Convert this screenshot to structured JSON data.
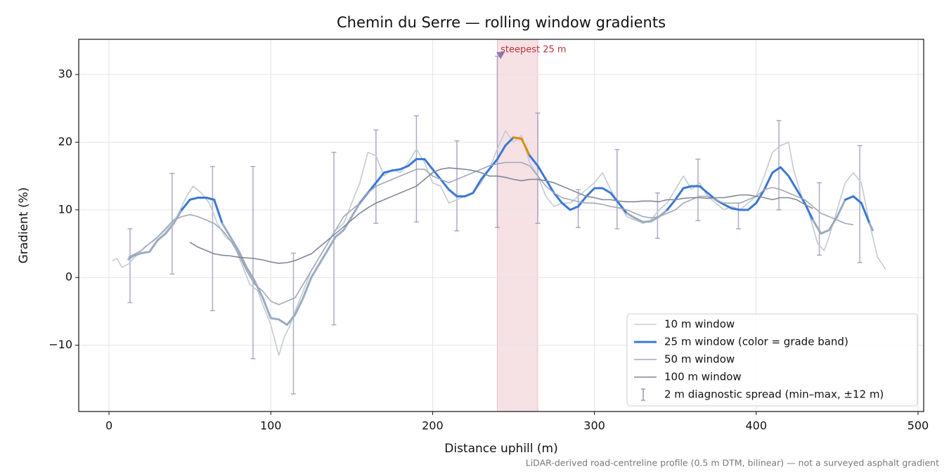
{
  "chart_data": {
    "type": "line",
    "title": "Chemin du Serre — rolling window gradients",
    "xlabel": "Distance uphill (m)",
    "ylabel": "Gradient (%)",
    "note": "LiDAR-derived road-centreline profile (0.5 m DTM, bilinear) — not a surveyed asphalt gradient",
    "xlim": [
      -18.7,
      503.5
    ],
    "ylim": [
      -19.8,
      35.2
    ],
    "xticks": [
      0,
      100,
      200,
      300,
      400,
      500
    ],
    "yticks": [
      {
        "value": -10,
        "label": "−10"
      },
      0,
      10,
      20,
      30
    ],
    "grid": true,
    "legend": "lower right",
    "highlight": {
      "from": 240,
      "to": 265,
      "color": "#e9b5bd"
    },
    "annotation": {
      "text": "steepest 25 m",
      "x": 242,
      "y": 32.8,
      "color": "#c0303a",
      "marker_color": "#8a78b0"
    },
    "grade_bands": [
      {
        "max": 10,
        "color": "#9aabc0"
      },
      {
        "max": 20,
        "color": "#3a78d4"
      },
      {
        "color": "#e08a00"
      }
    ],
    "series": [
      {
        "name": "10 m window",
        "color": "#c3cad4",
        "width": 1.6,
        "x": [
          2,
          5,
          8,
          12,
          18,
          22,
          28,
          35,
          42,
          48,
          52,
          57,
          62,
          67,
          72,
          77,
          82,
          87,
          92,
          95,
          100,
          105,
          108,
          112,
          115,
          120,
          125,
          130,
          135,
          140,
          145,
          150,
          155,
          160,
          165,
          170,
          175,
          180,
          185,
          190,
          195,
          200,
          205,
          210,
          215,
          220,
          225,
          230,
          235,
          240,
          245,
          250,
          255,
          260,
          265,
          270,
          275,
          280,
          285,
          290,
          295,
          300,
          305,
          310,
          315,
          320,
          325,
          330,
          335,
          340,
          345,
          350,
          355,
          360,
          365,
          370,
          375,
          380,
          385,
          390,
          395,
          400,
          405,
          410,
          415,
          420,
          423,
          428,
          432,
          438,
          442,
          445,
          450,
          455,
          460,
          465,
          470,
          475,
          480
        ],
        "values": [
          2.5,
          2.8,
          1.5,
          2,
          3.5,
          4.5,
          5.5,
          7,
          9,
          12,
          13.5,
          12.5,
          11,
          8,
          6,
          5,
          2,
          -1,
          -2,
          -4,
          -7,
          -11.5,
          -9,
          -7,
          -5,
          -2,
          1,
          3,
          5,
          7,
          8,
          11,
          14,
          18.5,
          18,
          15,
          16,
          15.5,
          17,
          19,
          17,
          14,
          13.5,
          11,
          11.5,
          12,
          12.5,
          14,
          16,
          19,
          21.7,
          20,
          21,
          17,
          15,
          12,
          10.5,
          11,
          11,
          12,
          13,
          14,
          15.5,
          13,
          11,
          9,
          8.5,
          8,
          8.5,
          10,
          11,
          13,
          15,
          13,
          14,
          12,
          11,
          10,
          10.5,
          10,
          11,
          12,
          15,
          18.5,
          19.5,
          20,
          16,
          12,
          10,
          5,
          4,
          6,
          10,
          14,
          15.5,
          14,
          8,
          3,
          1.2
        ]
      },
      {
        "name": "25 m window (color = grade band)",
        "color": "#3a78d4",
        "width": 3,
        "banded": true,
        "x": [
          12,
          15,
          20,
          25,
          30,
          35,
          40,
          45,
          50,
          55,
          60,
          65,
          70,
          75,
          80,
          85,
          90,
          95,
          100,
          105,
          110,
          115,
          120,
          125,
          130,
          135,
          140,
          145,
          150,
          155,
          160,
          165,
          170,
          175,
          180,
          185,
          190,
          195,
          200,
          205,
          210,
          215,
          220,
          225,
          230,
          235,
          240,
          245,
          250,
          255,
          260,
          265,
          270,
          275,
          280,
          285,
          290,
          295,
          300,
          305,
          310,
          315,
          320,
          325,
          330,
          335,
          340,
          345,
          350,
          355,
          360,
          365,
          370,
          375,
          380,
          385,
          390,
          395,
          400,
          405,
          410,
          415,
          420,
          425,
          430,
          435,
          440,
          445,
          450,
          455,
          460,
          465,
          470,
          472
        ],
        "values": [
          2.7,
          3.2,
          3.6,
          3.8,
          5.5,
          6.5,
          8,
          10,
          11.5,
          11.8,
          11.8,
          11.5,
          8,
          6,
          4,
          1.5,
          -0.5,
          -3,
          -6,
          -6.2,
          -7,
          -5.5,
          -3,
          0,
          2,
          4,
          6,
          7,
          9,
          11,
          12.5,
          14,
          15.5,
          15.8,
          16,
          16.5,
          17.5,
          17.5,
          16,
          14.5,
          13,
          12,
          12,
          12.5,
          14.5,
          16,
          17.5,
          19.5,
          20.7,
          20.5,
          18,
          16.5,
          14.5,
          12.5,
          11,
          10,
          10.5,
          12,
          13.2,
          13.2,
          12.5,
          11,
          9.5,
          8.8,
          8.2,
          8.3,
          9,
          10,
          11.5,
          13.2,
          13.5,
          13.5,
          12.5,
          11.5,
          10.8,
          10.2,
          10,
          10,
          11,
          13,
          15.5,
          16.3,
          15,
          13,
          11,
          8.5,
          6.5,
          7,
          9,
          11.5,
          12,
          11,
          8,
          7
        ]
      },
      {
        "name": "50 m window",
        "color": "#a0a8b8",
        "width": 1.6,
        "x": [
          12,
          20,
          30,
          40,
          45,
          50,
          55,
          60,
          65,
          70,
          75,
          80,
          85,
          90,
          95,
          100,
          105,
          110,
          115,
          120,
          125,
          130,
          135,
          140,
          145,
          150,
          155,
          160,
          165,
          170,
          175,
          180,
          185,
          190,
          195,
          200,
          205,
          210,
          215,
          220,
          225,
          230,
          235,
          240,
          245,
          250,
          255,
          260,
          265,
          270,
          275,
          280,
          285,
          290,
          295,
          300,
          305,
          310,
          315,
          320,
          325,
          330,
          335,
          340,
          345,
          350,
          355,
          360,
          365,
          370,
          375,
          380,
          385,
          390,
          395,
          400,
          405,
          410,
          415,
          420,
          425,
          430,
          435,
          440,
          445,
          450,
          455,
          460
        ],
        "values": [
          3,
          4,
          6,
          8.5,
          9,
          9.3,
          9,
          8.5,
          8,
          7,
          5.5,
          3.5,
          1,
          -1,
          -2,
          -3.5,
          -4,
          -3.5,
          -3,
          -1,
          1,
          3,
          5,
          7,
          9,
          10,
          11,
          12.5,
          13.5,
          14,
          14.5,
          15,
          15.5,
          16,
          16,
          15,
          14.5,
          14,
          14.5,
          15,
          15.5,
          16,
          16.5,
          16.8,
          17,
          17,
          17,
          16.5,
          15,
          13.5,
          12.5,
          11.8,
          11.5,
          11.2,
          11,
          11,
          10.8,
          10.5,
          10.3,
          10,
          9.5,
          9,
          8.8,
          9,
          9.5,
          10,
          11,
          11.5,
          12,
          12,
          11.5,
          11,
          11,
          11,
          11.5,
          12,
          13,
          13.3,
          13,
          12.5,
          12,
          11.5,
          10.5,
          9.5,
          9,
          8.5,
          8,
          7.8
        ]
      },
      {
        "name": "100 m window",
        "color": "#7f8898",
        "width": 1.6,
        "x": [
          50,
          55,
          60,
          65,
          70,
          75,
          80,
          85,
          90,
          95,
          100,
          105,
          110,
          115,
          120,
          125,
          130,
          135,
          140,
          145,
          150,
          155,
          160,
          165,
          170,
          175,
          180,
          185,
          190,
          195,
          200,
          205,
          210,
          215,
          220,
          225,
          230,
          235,
          240,
          245,
          250,
          255,
          260,
          265,
          270,
          275,
          280,
          285,
          290,
          295,
          300,
          305,
          310,
          315,
          320,
          325,
          330,
          335,
          340,
          345,
          350,
          355,
          360,
          365,
          370,
          375,
          380,
          385,
          390,
          395,
          400,
          405,
          410,
          415,
          420,
          425,
          430,
          435
        ],
        "values": [
          5.2,
          4.5,
          4,
          3.5,
          3.3,
          3.2,
          3,
          2.9,
          2.8,
          2.6,
          2.3,
          2.1,
          2.2,
          2.5,
          3,
          3.5,
          4.5,
          5.5,
          6.5,
          7.5,
          8.5,
          9.5,
          10.3,
          11,
          11.5,
          12,
          12.5,
          13,
          13.5,
          14.5,
          15.5,
          16,
          16.2,
          16.1,
          16,
          15.8,
          15.5,
          15,
          15,
          14.8,
          14.5,
          14.3,
          14.5,
          14.5,
          14.3,
          14,
          13.5,
          13,
          12.5,
          12,
          11.8,
          11.5,
          11.5,
          11.3,
          11.2,
          11.2,
          11.3,
          11.3,
          11.2,
          11.5,
          11.5,
          11.7,
          11.8,
          11.8,
          11.7,
          11.8,
          11.8,
          12,
          12.2,
          12.2,
          12,
          11.8,
          11.5,
          11.8,
          11.8,
          11.5,
          10.8,
          10.2
        ]
      }
    ],
    "spread": {
      "name": "2 m diagnostic spread (min–max, ±12 m)",
      "color": "#9a95b8",
      "x": [
        13,
        39,
        64,
        89,
        114,
        139,
        165,
        190,
        215,
        240,
        265,
        290,
        314,
        339,
        364,
        389,
        414,
        439,
        464
      ],
      "min": [
        -3.7,
        0.5,
        -4.9,
        -12,
        -17.2,
        -7,
        8,
        8.2,
        6.9,
        7.4,
        8,
        7.4,
        7.2,
        5.8,
        8.4,
        7.2,
        10,
        3.3,
        2.2
      ],
      "max": [
        7.2,
        15.4,
        16.4,
        16.4,
        3.6,
        18.5,
        21.8,
        23.9,
        20.2,
        32.7,
        24.3,
        13,
        18.9,
        12.5,
        17.5,
        11,
        23.2,
        14,
        19.5
      ]
    }
  }
}
